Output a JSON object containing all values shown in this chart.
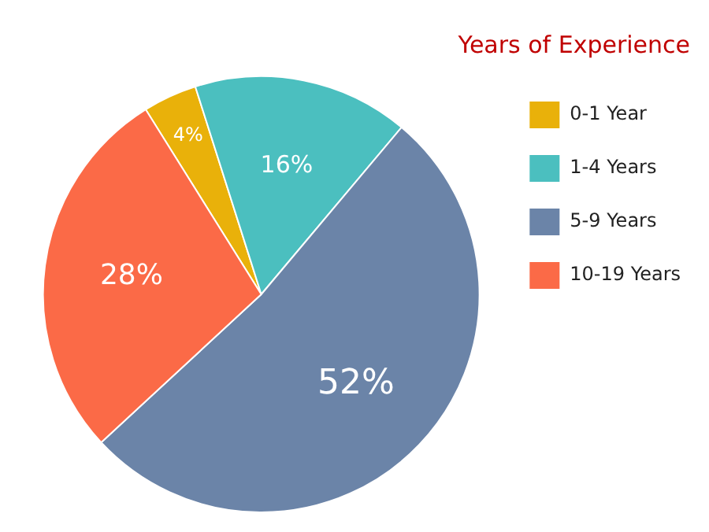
{
  "chart_data": {
    "type": "pie",
    "legend_title": "Years of Experience",
    "legend": "top right",
    "categories": [
      "0-1 Year",
      "1-4 Years",
      "5-9 Years",
      "10-19 Years"
    ],
    "values": [
      4,
      16,
      52,
      28
    ],
    "value_labels": [
      "4%",
      "16%",
      "52%",
      "28%"
    ],
    "colors": [
      "#e9b10a",
      "#4bbfbf",
      "#6b84a8",
      "#fb6a47"
    ]
  }
}
